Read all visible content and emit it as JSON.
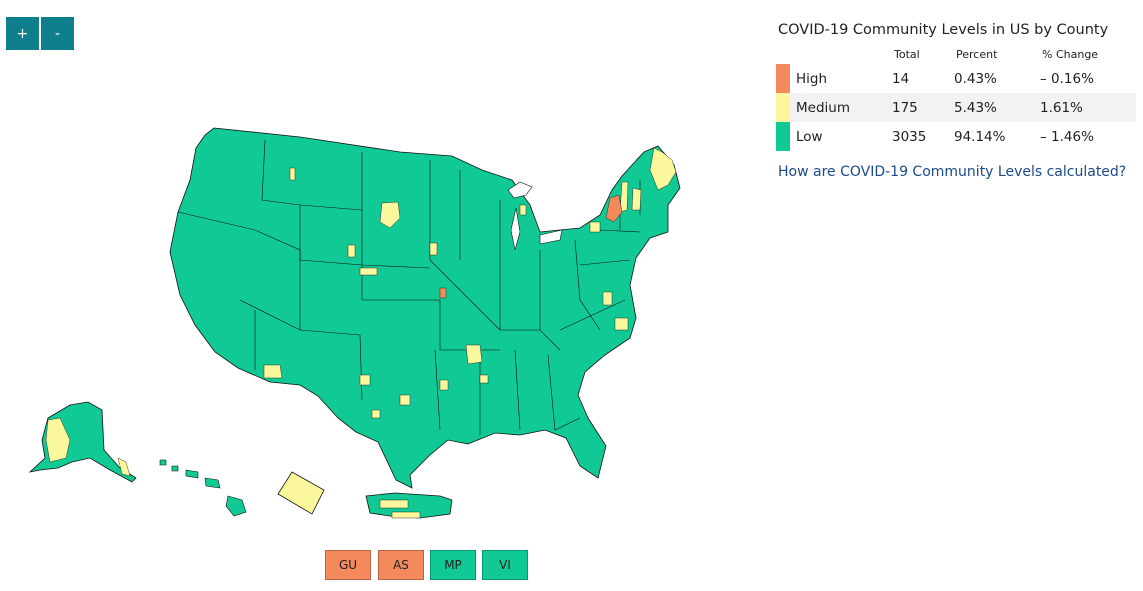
{
  "zoom": {
    "in_label": "+",
    "out_label": "-"
  },
  "colors": {
    "high": "#f4895c",
    "medium": "#fbf79c",
    "low": "#11c994",
    "border": "#111111",
    "button": "#0e7f8c"
  },
  "legend": {
    "title": "COVID-19 Community Levels in US by County",
    "headers": {
      "total": "Total",
      "percent": "Percent",
      "change": "% Change"
    },
    "rows": [
      {
        "level": "High",
        "total": "14",
        "percent": "0.43%",
        "change": "– 0.16%"
      },
      {
        "level": "Medium",
        "total": "175",
        "percent": "5.43%",
        "change": "1.61%"
      },
      {
        "level": "Low",
        "total": "3035",
        "percent": "94.14%",
        "change": "– 1.46%"
      }
    ],
    "link": "How are COVID-19 Community Levels calculated?"
  },
  "territories": [
    {
      "code": "GU",
      "level": "high"
    },
    {
      "code": "AS",
      "level": "high"
    },
    {
      "code": "MP",
      "level": "low"
    },
    {
      "code": "VI",
      "level": "low"
    }
  ]
}
